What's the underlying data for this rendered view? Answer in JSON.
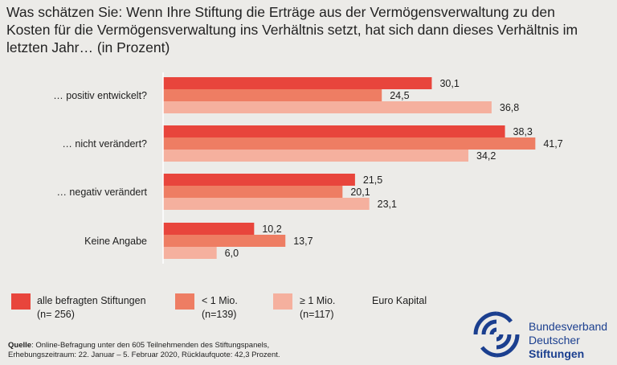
{
  "title": {
    "line1": "Was schätzen Sie: Wenn Ihre Stiftung die Erträge aus der Vermögensverwaltung zu den",
    "line2": "Kosten für die Vermögensverwaltung ins Verhältnis setzt, hat sich dann dieses Verhältnis im",
    "line3": "letzten Jahr… (in Prozent)"
  },
  "chart_data": {
    "type": "bar",
    "orientation": "horizontal",
    "categories": [
      "… positiv entwickelt?",
      "… nicht verändert?",
      "… negativ verändert",
      "Keine Angabe"
    ],
    "series": [
      {
        "name": "alle befragten Stiftungen (n= 256)",
        "values": [
          30.1,
          38.3,
          21.5,
          10.2
        ],
        "labels": [
          "30,1",
          "38,3",
          "21,5",
          "10,2"
        ]
      },
      {
        "name": "< 1 Mio. (n=139)",
        "values": [
          24.5,
          41.7,
          20.1,
          13.7
        ],
        "labels": [
          "24,5",
          "41,7",
          "20,1",
          "13,7"
        ]
      },
      {
        "name": "≥ 1 Mio. (n=117)",
        "values": [
          36.8,
          34.2,
          23.1,
          6.0
        ],
        "labels": [
          "36,8",
          "34,2",
          "23,1",
          "6,0"
        ]
      }
    ],
    "colors": [
      "#e8453c",
      "#ee7d63",
      "#f5b09e"
    ],
    "xlim": [
      0,
      45
    ]
  },
  "legend": {
    "items": [
      {
        "line1": "alle befragten Stiftungen",
        "line2": "(n= 256)"
      },
      {
        "line1": "< 1 Mio.",
        "line2": "(n=139)"
      },
      {
        "line1": "≥ 1 Mio.",
        "line2": "(n=117)"
      }
    ],
    "suffix": "Euro Kapital"
  },
  "source": {
    "label": "Quelle",
    "line1": ": Online-Befragung unter den 605 Teilnehmenden des Stiftungspanels,",
    "line2": "Erhebungszeitraum: 22. Januar – 5. Februar 2020, Rücklaufquote: 42,3 Prozent."
  },
  "logo": {
    "line1": "Bundesverband",
    "line2": "Deutscher",
    "line3": "Stiftungen"
  },
  "colors": {
    "background": "#ecebe8",
    "brand_blue": "#1b3f8f"
  }
}
